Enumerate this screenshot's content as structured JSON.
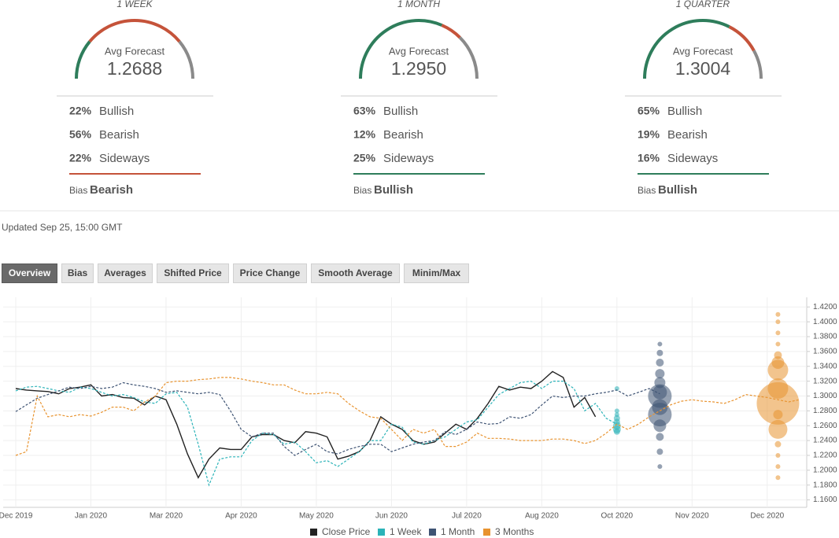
{
  "panels": [
    {
      "title": "1 WEEK",
      "avg_label": "Avg Forecast",
      "avg_value": "1.2688",
      "stats": [
        {
          "label": "Bullish",
          "value": 22,
          "value_label": "22%",
          "color": "#2e7d5b"
        },
        {
          "label": "Bearish",
          "value": 56,
          "value_label": "56%",
          "color": "#c5533a"
        },
        {
          "label": "Sideways",
          "value": 22,
          "value_label": "22%",
          "color": "#8a8a8a"
        }
      ],
      "bias_label": "Bias",
      "bias": "Bearish",
      "bias_color": "#c5533a"
    },
    {
      "title": "1 MONTH",
      "avg_label": "Avg Forecast",
      "avg_value": "1.2950",
      "stats": [
        {
          "label": "Bullish",
          "value": 63,
          "value_label": "63%",
          "color": "#2e7d5b"
        },
        {
          "label": "Bearish",
          "value": 12,
          "value_label": "12%",
          "color": "#c5533a"
        },
        {
          "label": "Sideways",
          "value": 25,
          "value_label": "25%",
          "color": "#8a8a8a"
        }
      ],
      "bias_label": "Bias",
      "bias": "Bullish",
      "bias_color": "#2e7d5b"
    },
    {
      "title": "1 QUARTER",
      "avg_label": "Avg Forecast",
      "avg_value": "1.3004",
      "stats": [
        {
          "label": "Bullish",
          "value": 65,
          "value_label": "65%",
          "color": "#2e7d5b"
        },
        {
          "label": "Bearish",
          "value": 19,
          "value_label": "19%",
          "color": "#c5533a"
        },
        {
          "label": "Sideways",
          "value": 16,
          "value_label": "16%",
          "color": "#8a8a8a"
        }
      ],
      "bias_label": "Bias",
      "bias": "Bullish",
      "bias_color": "#2e7d5b"
    }
  ],
  "updated": "Updated Sep 25, 15:00 GMT",
  "tabs": [
    "Overview",
    "Bias",
    "Averages",
    "Shifted Price",
    "Price Change",
    "Smooth Average",
    "Minim/Max"
  ],
  "active_tab": 0,
  "chart_data": {
    "type": "line",
    "categories": [
      "Dec 2019",
      null,
      null,
      null,
      null,
      null,
      null,
      "Jan 2020",
      null,
      null,
      null,
      null,
      null,
      null,
      "Mar 2020",
      null,
      null,
      null,
      null,
      null,
      null,
      "Apr 2020",
      null,
      null,
      null,
      null,
      null,
      null,
      "May 2020",
      null,
      null,
      null,
      null,
      null,
      null,
      "Jun 2020",
      null,
      null,
      null,
      null,
      null,
      null,
      "Jul 2020",
      null,
      null,
      null,
      null,
      null,
      null,
      "Aug 2020",
      null,
      null,
      null,
      null,
      null,
      null,
      "Oct 2020",
      null,
      null,
      null,
      null,
      null,
      null,
      "Nov 2020",
      null,
      null,
      null,
      null,
      null,
      null,
      "Dec 2020",
      null,
      null,
      null
    ],
    "ylim": [
      1.15,
      1.433
    ],
    "yticks": [
      {
        "value": 1.16,
        "label": "1.1600"
      },
      {
        "value": 1.18,
        "label": "1.1800"
      },
      {
        "value": 1.2,
        "label": "1.2000"
      },
      {
        "value": 1.22,
        "label": "1.2200"
      },
      {
        "value": 1.24,
        "label": "1.2400"
      },
      {
        "value": 1.26,
        "label": "1.2600"
      },
      {
        "value": 1.28,
        "label": "1.2800"
      },
      {
        "value": 1.3,
        "label": "1.3000"
      },
      {
        "value": 1.32,
        "label": "1.3200"
      },
      {
        "value": 1.34,
        "label": "1.3400"
      },
      {
        "value": 1.36,
        "label": "1.3600"
      },
      {
        "value": 1.38,
        "label": "1.3800"
      },
      {
        "value": 1.4,
        "label": "1.4000"
      },
      {
        "value": 1.42,
        "label": "1.4200"
      }
    ],
    "grid": true,
    "series": [
      {
        "name": "Close Price",
        "color": "#222222",
        "dashed": false,
        "values": [
          1.31,
          1.308,
          1.307,
          1.306,
          1.303,
          1.31,
          1.312,
          1.315,
          1.3,
          1.302,
          1.298,
          1.297,
          1.288,
          1.3,
          1.295,
          1.262,
          1.222,
          1.19,
          1.215,
          1.23,
          1.228,
          1.228,
          1.245,
          1.248,
          1.248,
          1.24,
          1.237,
          1.252,
          1.25,
          1.245,
          1.215,
          1.219,
          1.225,
          1.24,
          1.272,
          1.262,
          1.255,
          1.24,
          1.235,
          1.238,
          1.25,
          1.262,
          1.255,
          1.27,
          1.29,
          1.313,
          1.308,
          1.312,
          1.31,
          1.32,
          1.333,
          1.325,
          1.285,
          1.298,
          1.272,
          null,
          null,
          null,
          null,
          null,
          null,
          null,
          null,
          null,
          null,
          null,
          null,
          null,
          null,
          null,
          null,
          null,
          null,
          null
        ]
      },
      {
        "name": "1 Week",
        "color": "#2bb3b8",
        "dashed": true,
        "values": [
          1.307,
          1.312,
          1.313,
          1.31,
          1.307,
          1.305,
          1.312,
          1.31,
          1.305,
          1.3,
          1.302,
          1.298,
          1.292,
          1.29,
          1.303,
          1.305,
          1.285,
          1.235,
          1.18,
          1.215,
          1.218,
          1.218,
          1.24,
          1.25,
          1.248,
          1.235,
          1.238,
          1.225,
          1.21,
          1.213,
          1.205,
          1.215,
          1.225,
          1.24,
          1.24,
          1.262,
          1.258,
          1.238,
          1.235,
          1.24,
          1.245,
          1.255,
          1.265,
          1.268,
          1.285,
          1.302,
          1.31,
          1.318,
          1.32,
          1.31,
          1.32,
          1.32,
          1.31,
          1.28,
          1.29,
          1.27,
          1.262,
          null,
          null,
          null,
          null,
          null,
          null,
          null,
          null,
          null,
          null,
          null,
          null,
          null,
          null,
          null,
          null,
          null
        ],
        "forecast": {
          "at": 56,
          "values": [
            1.31,
            1.28,
            1.275,
            1.27,
            1.265,
            1.26,
            1.255,
            1.252
          ],
          "sizes": [
            3,
            3,
            3,
            4,
            4,
            5,
            5,
            4
          ]
        }
      },
      {
        "name": "1 Month",
        "color": "#3e5373",
        "dashed": true,
        "values": [
          1.279,
          1.288,
          1.297,
          1.302,
          1.307,
          1.312,
          1.31,
          1.313,
          1.31,
          1.312,
          1.318,
          1.315,
          1.313,
          1.31,
          1.305,
          1.307,
          1.305,
          1.303,
          1.305,
          1.302,
          1.28,
          1.255,
          1.245,
          1.25,
          1.25,
          1.232,
          1.22,
          1.228,
          1.235,
          1.225,
          1.222,
          1.228,
          1.232,
          1.235,
          1.235,
          1.225,
          1.23,
          1.235,
          1.238,
          1.24,
          1.252,
          1.248,
          1.255,
          1.265,
          1.262,
          1.263,
          1.272,
          1.27,
          1.275,
          1.288,
          1.3,
          1.298,
          1.3,
          1.3,
          1.303,
          1.305,
          1.308,
          1.3,
          1.305,
          1.31,
          1.303,
          null,
          null,
          null,
          null,
          null,
          null,
          null,
          null,
          null,
          null,
          null,
          null,
          null
        ],
        "forecast": {
          "at": 60,
          "values": [
            1.37,
            1.358,
            1.345,
            1.33,
            1.318,
            1.305,
            1.3,
            1.285,
            1.275,
            1.26,
            1.245,
            1.225,
            1.205
          ],
          "sizes": [
            3,
            4,
            5,
            6,
            7,
            9,
            15,
            10,
            15,
            8,
            5,
            4,
            3
          ]
        }
      },
      {
        "name": "3 Months",
        "color": "#e8932f",
        "dashed": true,
        "values": [
          1.22,
          1.225,
          1.3,
          1.272,
          1.275,
          1.272,
          1.275,
          1.273,
          1.278,
          1.285,
          1.285,
          1.28,
          1.292,
          1.3,
          1.318,
          1.32,
          1.32,
          1.322,
          1.323,
          1.325,
          1.325,
          1.323,
          1.32,
          1.318,
          1.315,
          1.315,
          1.308,
          1.303,
          1.303,
          1.305,
          1.303,
          1.29,
          1.28,
          1.272,
          1.27,
          1.255,
          1.24,
          1.255,
          1.25,
          1.255,
          1.232,
          1.232,
          1.238,
          1.25,
          1.243,
          1.243,
          1.242,
          1.24,
          1.24,
          1.24,
          1.242,
          1.242,
          1.24,
          1.236,
          1.24,
          1.25,
          1.262,
          1.255,
          1.262,
          1.272,
          1.28,
          1.288,
          1.293,
          1.295,
          1.293,
          1.292,
          1.29,
          1.295,
          1.302,
          1.3,
          1.298,
          1.295,
          1.292,
          1.295
        ],
        "forecast": {
          "at": 71,
          "values": [
            1.41,
            1.4,
            1.385,
            1.37,
            1.355,
            1.345,
            1.335,
            1.31,
            1.29,
            1.275,
            1.255,
            1.235,
            1.22,
            1.205,
            1.19
          ],
          "sizes": [
            3,
            3,
            3,
            3,
            5,
            8,
            13,
            13,
            27,
            6,
            12,
            4,
            3,
            3,
            3
          ]
        }
      }
    ]
  }
}
